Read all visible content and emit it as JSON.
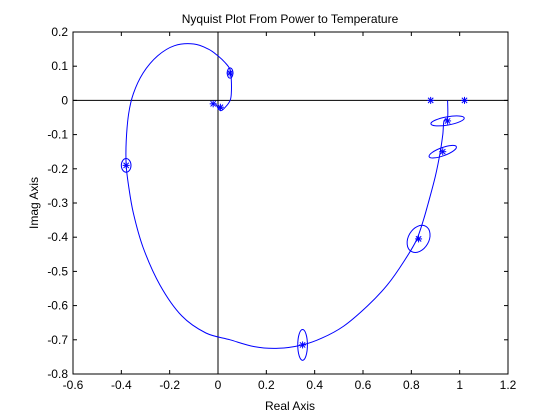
{
  "chart_data": {
    "type": "line",
    "title": "Nyquist Plot From Power to Temperature",
    "xlabel": "Real Axis",
    "ylabel": "Imag Axis",
    "xlim": [
      -0.6,
      1.2
    ],
    "ylim": [
      -0.8,
      0.2
    ],
    "xticks": [
      "-0.6",
      "-0.4",
      "-0.2",
      "0",
      "0.2",
      "0.4",
      "0.6",
      "0.8",
      "1",
      "1.2"
    ],
    "yticks": [
      "0.2",
      "0.1",
      "0",
      "-0.1",
      "-0.2",
      "-0.3",
      "-0.4",
      "-0.5",
      "-0.6",
      "-0.7",
      "-0.8"
    ],
    "grid": false,
    "line_color": "#0000ff",
    "axis_line_color": "#000000",
    "curve": {
      "x": [
        0.95,
        0.95,
        0.935,
        0.93,
        0.92,
        0.9,
        0.87,
        0.85,
        0.82,
        0.77,
        0.7,
        0.62,
        0.52,
        0.43,
        0.35,
        0.25,
        0.15,
        0.05,
        -0.05,
        -0.15,
        -0.24,
        -0.31,
        -0.35,
        -0.37,
        -0.38,
        -0.38,
        -0.37,
        -0.35,
        -0.31,
        -0.25,
        -0.18,
        -0.1,
        -0.04,
        0.0,
        0.03,
        0.05,
        0.055,
        0.055,
        0.05,
        0.03,
        0.01,
        -0.01,
        0.0,
        0.02
      ],
      "y": [
        0.0,
        -0.05,
        -0.06,
        -0.1,
        -0.15,
        -0.22,
        -0.3,
        -0.35,
        -0.41,
        -0.47,
        -0.54,
        -0.6,
        -0.66,
        -0.695,
        -0.715,
        -0.725,
        -0.72,
        -0.7,
        -0.68,
        -0.63,
        -0.54,
        -0.43,
        -0.33,
        -0.25,
        -0.19,
        -0.12,
        -0.04,
        0.02,
        0.08,
        0.13,
        0.16,
        0.165,
        0.15,
        0.13,
        0.11,
        0.09,
        0.06,
        0.02,
        0.0,
        -0.02,
        -0.03,
        -0.01,
        -0.02,
        -0.025
      ]
    },
    "markers": {
      "x": [
        0.88,
        1.02,
        0.95,
        0.93,
        0.83,
        0.35,
        -0.38,
        0.05,
        -0.02,
        0.01
      ],
      "y": [
        0.0,
        0.0,
        -0.06,
        -0.15,
        -0.405,
        -0.715,
        -0.19,
        0.08,
        -0.01,
        -0.02
      ]
    },
    "uncertainty_ellipses": [
      {
        "cx": 0.95,
        "cy": -0.06,
        "rx": 0.07,
        "ry": 0.012,
        "angle_deg": -10
      },
      {
        "cx": 0.93,
        "cy": -0.15,
        "rx": 0.06,
        "ry": 0.012,
        "angle_deg": -20
      },
      {
        "cx": 0.83,
        "cy": -0.405,
        "rx": 0.06,
        "ry": 0.03,
        "angle_deg": -60
      },
      {
        "cx": 0.35,
        "cy": -0.715,
        "rx": 0.02,
        "ry": 0.045,
        "angle_deg": 0
      },
      {
        "cx": -0.38,
        "cy": -0.19,
        "rx": 0.02,
        "ry": 0.02,
        "angle_deg": 0
      },
      {
        "cx": 0.05,
        "cy": 0.08,
        "rx": 0.012,
        "ry": 0.015,
        "angle_deg": 0
      }
    ]
  }
}
